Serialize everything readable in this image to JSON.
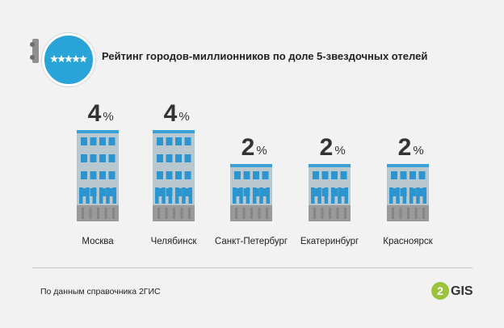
{
  "header": {
    "title": "Рейтинг городов-миллионников по доле 5-звездочных отелей"
  },
  "chart_data": {
    "type": "bar",
    "title": "Рейтинг городов-миллионников по доле 5-звездочных отелей",
    "categories": [
      "Москва",
      "Челябинск",
      "Санкт-Петербург",
      "Екатеринбург",
      "Красноярск"
    ],
    "values": [
      4,
      4,
      2,
      2,
      2
    ],
    "value_labels": [
      "4",
      "4",
      "2",
      "2",
      "2"
    ],
    "unit": "%",
    "xlabel": "",
    "ylabel": "",
    "grid": false,
    "colors": {
      "roof": "#3aa2d6",
      "wall": "#b9c7cf",
      "window": "#2c95cf",
      "base": "#9a9a9a",
      "text": "#333333"
    }
  },
  "footer": {
    "source": "По данным справочника 2ГИС",
    "logo_text": "GIS",
    "logo_digit": "2"
  },
  "icons": {
    "badge": "five-stars-icon",
    "logo": "2gis-logo"
  }
}
